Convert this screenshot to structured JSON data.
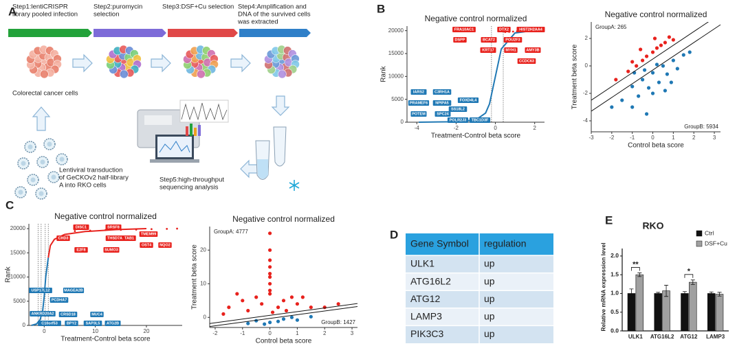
{
  "panel_labels": [
    "A",
    "B",
    "C",
    "D",
    "E"
  ],
  "workflow": {
    "steps": [
      [
        "Step1:lentiCRISPR",
        "library pooled infection"
      ],
      [
        "Step2:puromycin",
        "selection"
      ],
      [
        "Step3:DSF+Cu selection"
      ],
      [
        "Step4:Amplification and",
        "DNA of the survived cells",
        "was extracted"
      ]
    ],
    "cells_label": "Colorectal cancer  cells",
    "transduction": [
      "Lentiviral transduction",
      "of GeCKOv2 half-library",
      "A into RKO cells"
    ],
    "sequencing": [
      "Step5:high-throughput",
      "sequencing analysis"
    ]
  },
  "chart_data": [
    {
      "type": "line",
      "title": "Negative control normalized",
      "x_label": "Treatment-Control beta score",
      "y_label": "Rank",
      "xlim": [
        -4.5,
        2.5
      ],
      "xticks": [
        -4,
        -2,
        0,
        2
      ],
      "ylim": [
        0,
        21000
      ],
      "yticks": [
        0,
        5000,
        10000,
        15000,
        20000
      ],
      "thresholds": [
        -0.2,
        0.4
      ],
      "series": [
        {
          "mode": "line",
          "color": "#1f78b4",
          "x": [
            -3.9,
            -2.0,
            -1.0,
            -0.5,
            -0.3,
            -0.2,
            0.0,
            0.3,
            1.0,
            1.9
          ],
          "values": [
            0,
            100,
            500,
            2000,
            4000,
            6000,
            10000,
            16000,
            19500,
            20000
          ]
        },
        {
          "mode": "markers",
          "color": "#e8221d",
          "x": [
            0.5,
            0.7,
            0.9,
            1.1,
            1.3,
            1.5,
            1.7,
            1.9
          ],
          "values": [
            19700,
            19750,
            19800,
            19850,
            19900,
            19930,
            19960,
            20000
          ]
        }
      ],
      "labels_up": [
        "FRA10AC1",
        "DTX2",
        "HIST2H2AA4",
        "DSPP",
        "BCAT2",
        "POU2F3",
        "KRT17",
        "MYH1",
        "AMY3B",
        "CCDC63"
      ],
      "labels_down": [
        "IARS2",
        "C3RH1A",
        "PRAMEF6",
        "NPIPA5",
        "FOXD4L4",
        "POTEM",
        "SPC24",
        "SS18L2",
        "POLR2J3",
        "TBC1D3F"
      ]
    },
    {
      "type": "scatter",
      "title": "Negative control normalized",
      "x_label": "Control beta score",
      "y_label": "Treatment beta score",
      "xlim": [
        -3,
        3.3
      ],
      "xticks": [
        -3,
        -2,
        -1,
        0,
        1,
        2,
        3
      ],
      "ylim": [
        -4.8,
        3.2
      ],
      "yticks": [
        -4,
        -2,
        0,
        2
      ],
      "diagonals": [
        {
          "slope": 1,
          "intercept": 0.5
        },
        {
          "slope": 1,
          "intercept": -0.3
        }
      ],
      "group_a": "GroupA: 265",
      "group_b": "GroupB: 5934",
      "series": [
        {
          "color": "#e8221d",
          "x": [
            -1.8,
            -1.2,
            -0.8,
            -0.5,
            -0.3,
            0,
            0.2,
            0.4,
            0.6,
            0.1,
            -0.6,
            0.8,
            1.0,
            -1.0
          ],
          "values": [
            -1.0,
            -0.4,
            0.0,
            0.4,
            0.7,
            1.0,
            1.3,
            1.5,
            1.7,
            2.0,
            1.2,
            2.1,
            1.9,
            0.3
          ]
        },
        {
          "color": "#1f78b4",
          "x": [
            -2,
            -1.5,
            -1,
            -0.5,
            0,
            0,
            -0.3,
            0.5,
            1.0,
            -1,
            0.3,
            1.5,
            -0.7,
            0.7,
            1.2,
            -0.2,
            -0.9,
            0.2,
            -0.4,
            0.6,
            1.8,
            0.9
          ],
          "values": [
            -3.0,
            -2.5,
            -1.5,
            -1.0,
            -0.5,
            -2.0,
            -3.5,
            0.0,
            0.4,
            -3.0,
            -1.2,
            0.8,
            -2.2,
            -0.6,
            -0.2,
            -1.6,
            -0.5,
            0.1,
            -0.3,
            -1.8,
            1.0,
            -1.2
          ]
        }
      ]
    },
    {
      "type": "line",
      "title": "Negative control normalized",
      "x_label": "Treatment-Control beta score",
      "y_label": "Rank",
      "xlim": [
        -3,
        27
      ],
      "xticks": [
        0,
        10,
        20
      ],
      "ylim": [
        0,
        21000
      ],
      "yticks": [
        0,
        5000,
        10000,
        15000,
        20000
      ],
      "thresholds": [
        -1.2,
        -0.6,
        0.2,
        0.8
      ],
      "series": [
        {
          "mode": "line",
          "color": "#1f78b4",
          "x": [
            -2.5,
            -1.5,
            -0.8,
            -0.3,
            0.0,
            0.3,
            0.8
          ],
          "values": [
            0,
            300,
            1200,
            3000,
            6000,
            10000,
            14000
          ]
        },
        {
          "mode": "line",
          "color": "#e8221d",
          "x": [
            0.8,
            1.2,
            2.0,
            4.0,
            8.0,
            14.0,
            20.0
          ],
          "values": [
            14000,
            16500,
            17800,
            18800,
            19400,
            19800,
            20000
          ]
        },
        {
          "mode": "markers",
          "color": "#e8221d",
          "x": [
            6,
            9,
            12,
            15,
            18,
            21,
            24,
            26
          ],
          "values": [
            19500,
            19600,
            19700,
            19750,
            19800,
            19900,
            19950,
            20000
          ]
        }
      ],
      "labels_up": [
        "DISC1",
        "SRSF8",
        "CHD3",
        "THSD7A",
        "TAB1",
        "TMEM99",
        "E2F8",
        "SUMO3",
        "OST4",
        "NQO2"
      ],
      "labels_down": [
        "USP17L12",
        "MAGEA2B",
        "PCDHA7",
        "ANKRD20A2",
        "CRSD18",
        "MUC4",
        "C10orf53",
        "BPY2",
        "SAP3L5",
        "ATG2B"
      ]
    },
    {
      "type": "scatter",
      "title": "Negative control normalized",
      "x_label": "Control beta score",
      "y_label": "Treatment beta score",
      "xlim": [
        -2.2,
        3.2
      ],
      "xticks": [
        -2,
        -1,
        0,
        1,
        2,
        3
      ],
      "ylim": [
        -3,
        27
      ],
      "yticks": [
        0,
        10,
        20
      ],
      "diagonals": [
        {
          "slope": 1.1,
          "intercept": 0.6
        },
        {
          "slope": 1.1,
          "intercept": -0.3
        }
      ],
      "group_a": "GroupA: 4777",
      "group_b": "GroupB: 1427",
      "series": [
        {
          "color": "#e8221d",
          "x": [
            0,
            0,
            0,
            0,
            0,
            0,
            0,
            0,
            -1.5,
            -1,
            -0.5,
            0,
            0.5,
            1,
            1.5,
            -0.8,
            0.3,
            -0.3,
            0.8,
            -1.2,
            0.1,
            2,
            2.5,
            -1.7,
            1.2,
            0.6
          ],
          "values": [
            10,
            13,
            15,
            17,
            20,
            25,
            12,
            8,
            3,
            5,
            6,
            7,
            5,
            4,
            3,
            2,
            3,
            4,
            6,
            7,
            1.5,
            3,
            4,
            1,
            6,
            2
          ]
        },
        {
          "color": "#1f78b4",
          "x": [
            -0.5,
            0,
            0.5,
            1,
            -0.2,
            1.5,
            0.3,
            0.8,
            -0.8
          ],
          "values": [
            -1,
            -1.5,
            -0.5,
            -0.8,
            -2,
            0.2,
            -1.2,
            0,
            -1.8
          ]
        }
      ]
    },
    {
      "type": "bar",
      "title": "RKO",
      "y_label": "Relative mRNA expression level",
      "categories": [
        "ULK1",
        "ATG16L2",
        "ATG12",
        "LAMP3"
      ],
      "ylim": [
        0,
        2.2
      ],
      "yticks": [
        {
          "value": 0,
          "label": "0.0"
        },
        0.5,
        {
          "value": 1,
          "label": "1.0"
        },
        1.5,
        {
          "value": 2,
          "label": "2.0"
        }
      ],
      "significance": [
        "**",
        null,
        "*",
        null
      ],
      "series": [
        {
          "name": "Ctrl",
          "color": "#111111",
          "values": [
            1.0,
            1.0,
            1.0,
            1.0
          ],
          "errors": [
            0.12,
            0.03,
            0.05,
            0.04
          ]
        },
        {
          "name": "DSF+Cu",
          "color": "#a0a0a0",
          "values": [
            1.5,
            1.07,
            1.3,
            0.98
          ],
          "errors": [
            0.05,
            0.15,
            0.06,
            0.05
          ]
        }
      ]
    }
  ],
  "table": {
    "header": [
      "Gene Symbol",
      "regulation"
    ],
    "rows": [
      [
        "ULK1",
        "up"
      ],
      [
        "ATG16L2",
        "up"
      ],
      [
        "ATG12",
        "up"
      ],
      [
        "LAMP3",
        "up"
      ],
      [
        "PIK3C3",
        "up"
      ]
    ]
  }
}
